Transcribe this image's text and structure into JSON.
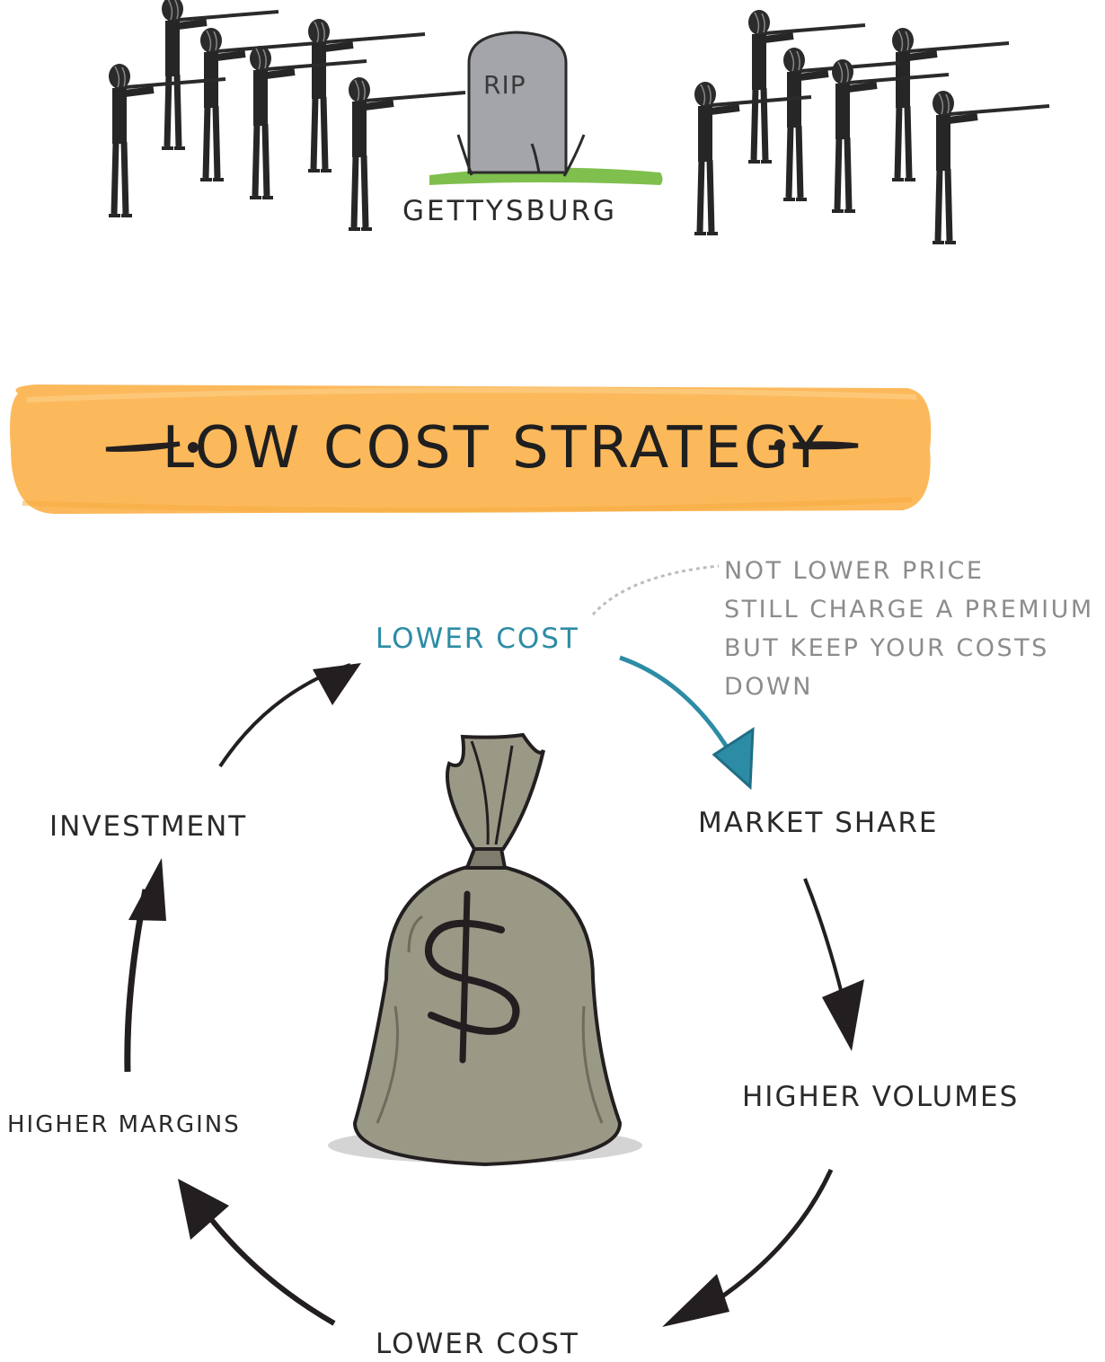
{
  "scene": {
    "tombstone_text": "RIP",
    "place_label": "GETTYSBURG"
  },
  "banner": {
    "title": "LOW COST STRATEGY",
    "color": "#fcb95b"
  },
  "note": {
    "lines": [
      "NOT LOWER PRICE",
      "STILL CHARGE A PREMIUM",
      "BUT KEEP YOUR COSTS",
      "DOWN"
    ]
  },
  "cycle": {
    "nodes": {
      "top": "LOWER COST",
      "right_upper": "MARKET SHARE",
      "right_lower": "HIGHER VOLUMES",
      "bottom": "LOWER COST",
      "left_lower": "HIGHER MARGINS",
      "left_upper": "INVESTMENT"
    },
    "highlight_color": "#2d8ca5",
    "center_icon": "money-bag-icon"
  }
}
